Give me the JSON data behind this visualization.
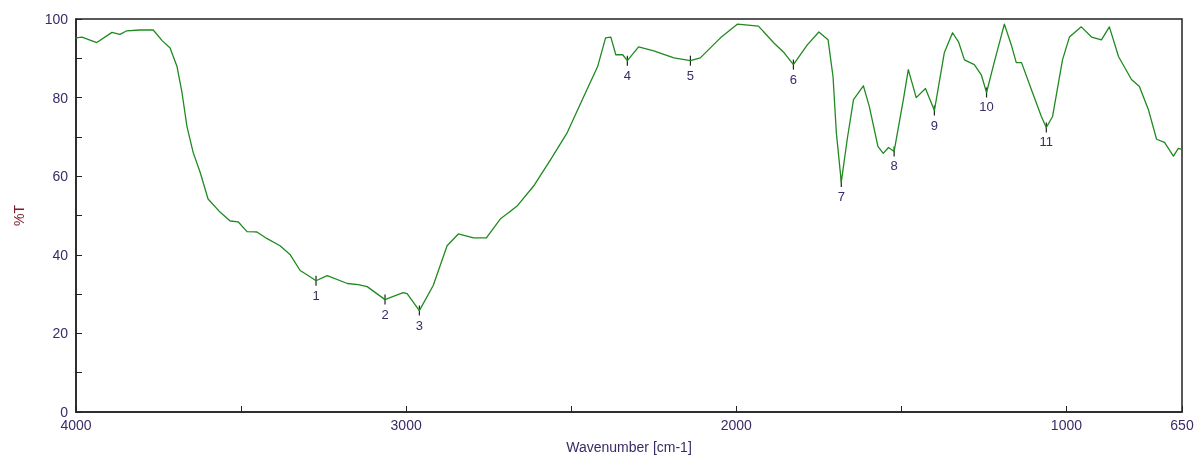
{
  "chart_data": {
    "type": "line",
    "xlabel": "Wavenumber [cm-1]",
    "ylabel": "%T",
    "xlim": [
      4000,
      650
    ],
    "ylim": [
      0,
      100
    ],
    "xticks": [
      4000,
      {
        "value": 3500,
        "label": null
      },
      3000,
      {
        "value": 2500,
        "label": null
      },
      2000,
      {
        "value": 1500,
        "label": null
      },
      1000,
      650
    ],
    "yticks": [
      0,
      {
        "value": 10,
        "label": null
      },
      20,
      {
        "value": 30,
        "label": null
      },
      40,
      {
        "value": 50,
        "label": null
      },
      60,
      {
        "value": 70,
        "label": null
      },
      80,
      {
        "value": 90,
        "label": null
      },
      100
    ],
    "color": "#1f8a1f",
    "x": [
      4000,
      3982,
      3937,
      3891,
      3867,
      3846,
      3806,
      3766,
      3739,
      3715,
      3694,
      3679,
      3664,
      3645,
      3624,
      3600,
      3563,
      3533,
      3509,
      3482,
      3452,
      3421,
      3382,
      3351,
      3321,
      3291,
      3273,
      3239,
      3178,
      3145,
      3118,
      3064,
      3039,
      3009,
      2997,
      2960,
      2918,
      2876,
      2842,
      2796,
      2757,
      2715,
      2664,
      2614,
      2562,
      2512,
      2462,
      2420,
      2396,
      2380,
      2365,
      2344,
      2330,
      2296,
      2250,
      2189,
      2139,
      2109,
      2048,
      1996,
      1933,
      1886,
      1855,
      1827,
      1785,
      1750,
      1722,
      1707,
      1697,
      1682,
      1664,
      1645,
      1615,
      1597,
      1571,
      1555,
      1539,
      1522,
      1494,
      1479,
      1455,
      1427,
      1400,
      1370,
      1345,
      1327,
      1309,
      1279,
      1258,
      1242,
      1219,
      1188,
      1167,
      1152,
      1136,
      1106,
      1076,
      1061,
      1042,
      1012,
      991,
      955,
      924,
      894,
      870,
      842,
      803,
      779,
      752,
      727,
      703,
      676,
      661,
      650
    ],
    "values": [
      95.2,
      95.4,
      94.0,
      96.6,
      96.1,
      97.0,
      97.2,
      97.2,
      94.5,
      92.6,
      87.9,
      81.3,
      72.7,
      66.0,
      61.0,
      54.2,
      50.8,
      48.6,
      48.4,
      45.9,
      45.8,
      44.1,
      42.3,
      40.0,
      36.0,
      34.4,
      33.4,
      34.7,
      32.7,
      32.4,
      31.9,
      28.6,
      29.4,
      30.4,
      30.1,
      25.8,
      32.2,
      42.3,
      45.3,
      44.3,
      44.3,
      49.1,
      52.4,
      57.5,
      64.3,
      71.1,
      80.3,
      87.9,
      95.2,
      95.4,
      90.9,
      90.9,
      89.4,
      92.9,
      91.9,
      90.1,
      89.4,
      90.1,
      95.2,
      98.7,
      98.2,
      93.9,
      91.4,
      88.4,
      93.4,
      96.7,
      94.7,
      85.3,
      71.1,
      58.5,
      69.4,
      79.5,
      83.0,
      77.7,
      67.6,
      65.8,
      67.3,
      66.3,
      79.5,
      87.1,
      80.0,
      82.3,
      76.7,
      91.4,
      96.5,
      94.2,
      89.6,
      88.4,
      85.8,
      81.3,
      88.9,
      98.7,
      93.4,
      88.9,
      88.9,
      82.0,
      75.2,
      72.4,
      75.2,
      89.6,
      95.4,
      98.0,
      95.4,
      94.7,
      98.0,
      90.4,
      84.6,
      82.8,
      77.0,
      69.4,
      68.6,
      65.1,
      67.1,
      66.8
    ],
    "annotations": [
      {
        "text": "1",
        "x": 3273,
        "y": 33.4
      },
      {
        "text": "2",
        "x": 3064,
        "y": 28.6
      },
      {
        "text": "3",
        "x": 2960,
        "y": 25.8
      },
      {
        "text": "4",
        "x": 2330,
        "y": 89.4
      },
      {
        "text": "5",
        "x": 2139,
        "y": 89.4
      },
      {
        "text": "6",
        "x": 1827,
        "y": 88.4
      },
      {
        "text": "7",
        "x": 1682,
        "y": 58.5
      },
      {
        "text": "8",
        "x": 1522,
        "y": 66.3
      },
      {
        "text": "9",
        "x": 1400,
        "y": 76.7
      },
      {
        "text": "10",
        "x": 1242,
        "y": 81.3
      },
      {
        "text": "11",
        "x": 1061,
        "y": 72.4
      }
    ]
  }
}
